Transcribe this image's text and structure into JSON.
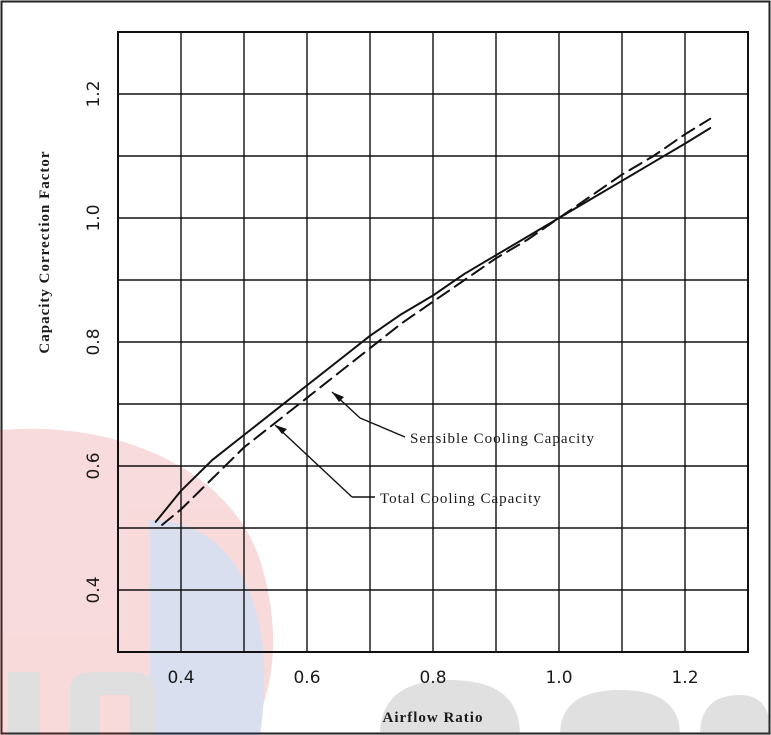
{
  "chart_data": {
    "type": "line",
    "title": "",
    "xlabel": "Airflow Ratio",
    "ylabel": "Capacity Correction Factor",
    "xlim": [
      0.3,
      1.3
    ],
    "ylim": [
      0.3,
      1.3
    ],
    "x_ticks": [
      0.4,
      0.6,
      0.8,
      1.0,
      1.2
    ],
    "y_ticks": [
      0.4,
      0.6,
      0.8,
      1.0,
      1.2
    ],
    "x_tick_labels": [
      "0.4",
      "0.6",
      "0.8",
      "1.0",
      "1.2"
    ],
    "y_tick_labels": [
      "0.4",
      "0.6",
      "0.8",
      "1.0",
      "1.2"
    ],
    "grid": true,
    "grid_step": 0.1,
    "series": [
      {
        "name": "Total Cooling Capacity",
        "style": "solid",
        "color": "#111111",
        "x": [
          0.36,
          0.4,
          0.45,
          0.5,
          0.55,
          0.6,
          0.65,
          0.7,
          0.75,
          0.8,
          0.85,
          0.9,
          0.95,
          1.0,
          1.05,
          1.1,
          1.15,
          1.2,
          1.24
        ],
        "y": [
          0.51,
          0.56,
          0.61,
          0.65,
          0.69,
          0.73,
          0.77,
          0.81,
          0.845,
          0.875,
          0.91,
          0.94,
          0.97,
          1.0,
          1.03,
          1.06,
          1.09,
          1.12,
          1.145
        ]
      },
      {
        "name": "Sensible Cooling Capacity",
        "style": "dashed",
        "color": "#111111",
        "x": [
          0.37,
          0.4,
          0.45,
          0.5,
          0.55,
          0.6,
          0.65,
          0.7,
          0.75,
          0.8,
          0.85,
          0.9,
          0.95,
          1.0,
          1.05,
          1.1,
          1.15,
          1.2,
          1.24
        ],
        "y": [
          0.505,
          0.53,
          0.58,
          0.63,
          0.67,
          0.71,
          0.75,
          0.79,
          0.83,
          0.865,
          0.9,
          0.935,
          0.965,
          1.0,
          1.035,
          1.07,
          1.1,
          1.135,
          1.16
        ]
      }
    ],
    "annotations": [
      {
        "text": "Sensible Cooling Capacity",
        "target": [
          0.62,
          0.715
        ]
      },
      {
        "text": "Total Cooling Capacity",
        "target": [
          0.56,
          0.665
        ]
      }
    ]
  }
}
